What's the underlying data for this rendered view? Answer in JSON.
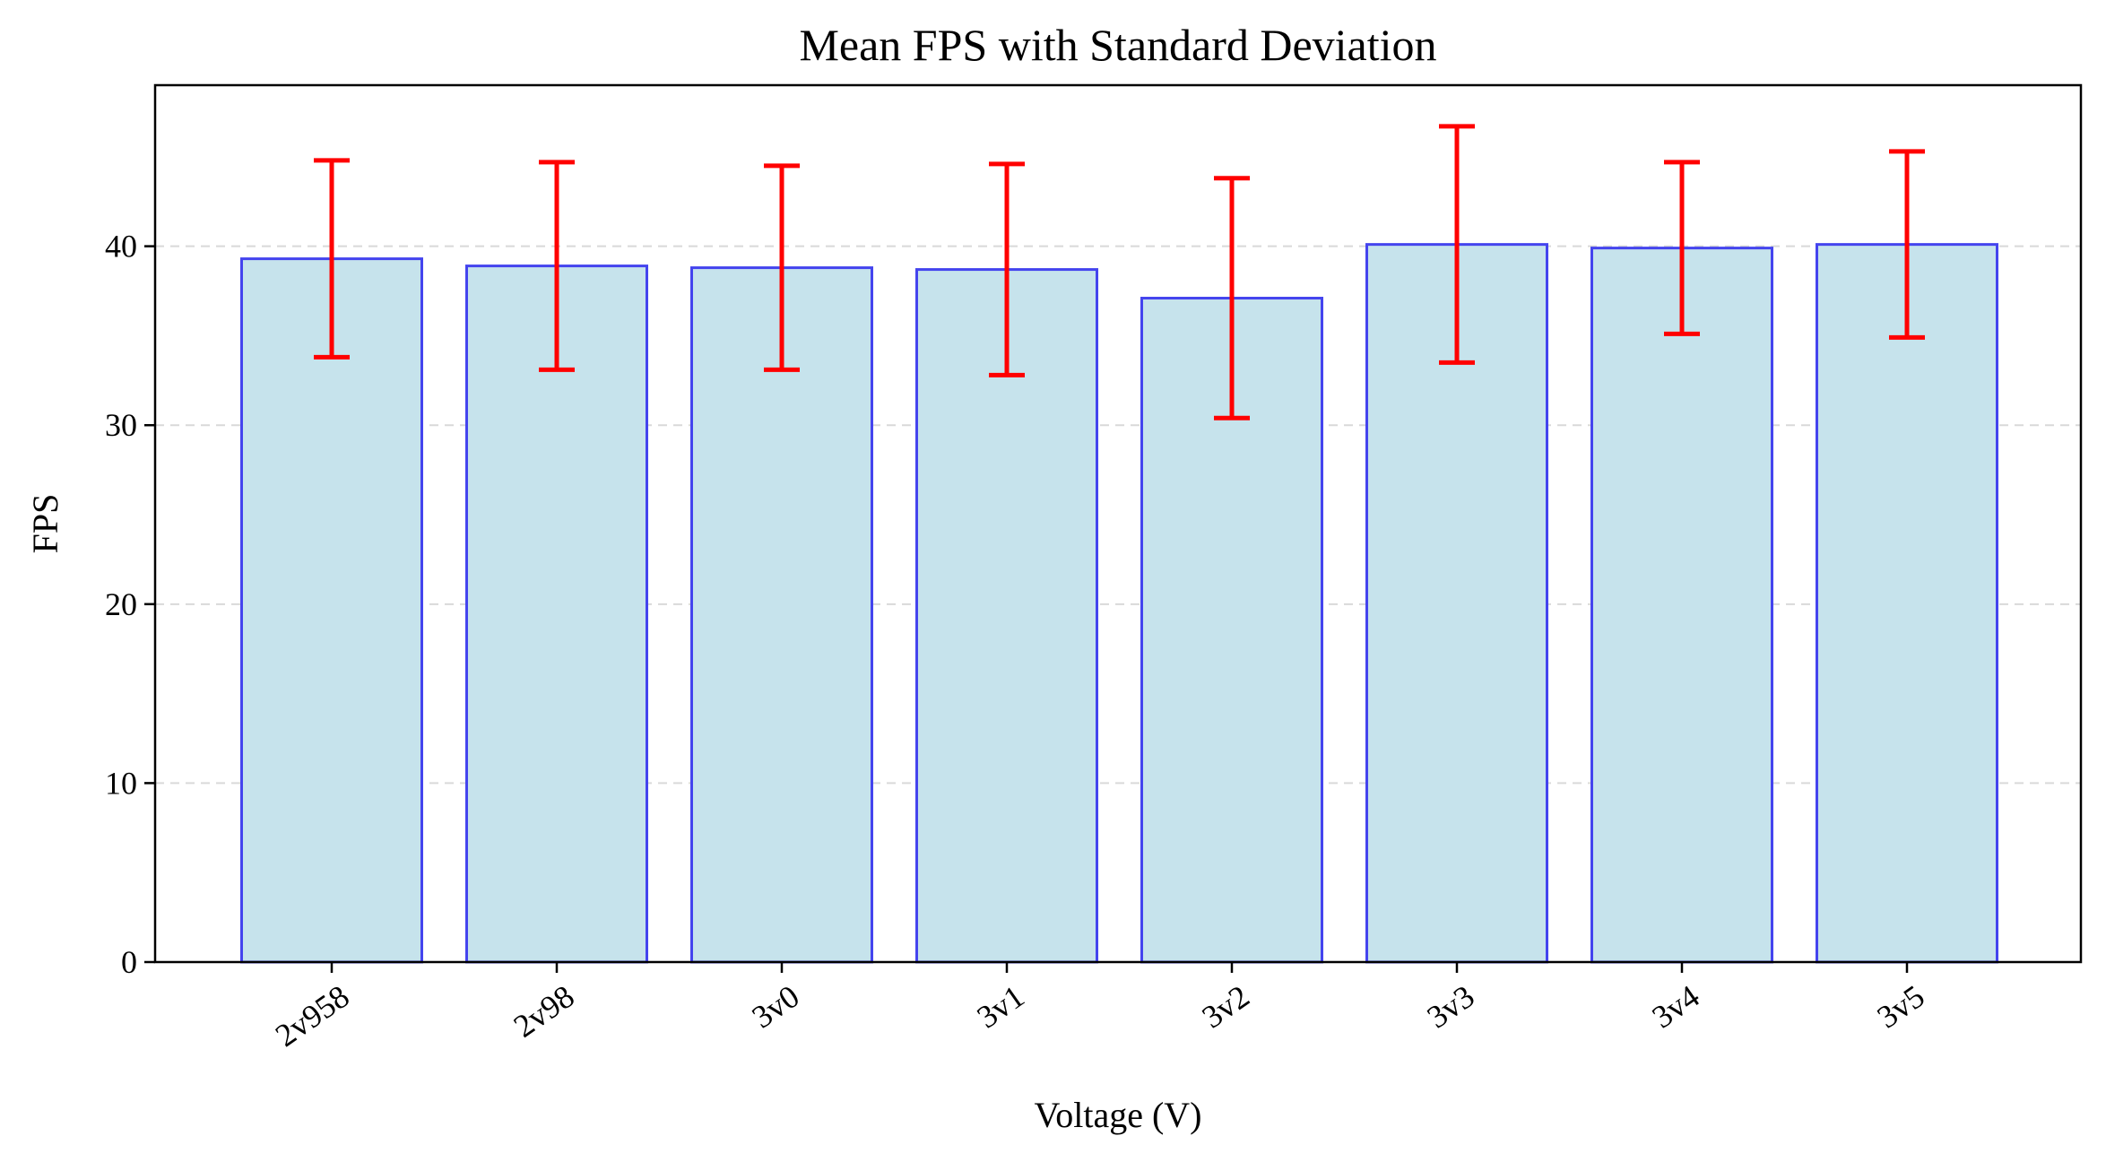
{
  "chart_data": {
    "type": "bar",
    "title": "Mean FPS with Standard Deviation",
    "xlabel": "Voltage (V)",
    "ylabel": "FPS",
    "categories": [
      "2v958",
      "2v98",
      "3v0",
      "3v1",
      "3v2",
      "3v3",
      "3v4",
      "3v5"
    ],
    "values": [
      39.3,
      38.9,
      38.8,
      38.7,
      37.1,
      40.1,
      39.9,
      40.1
    ],
    "error": [
      5.5,
      5.8,
      5.7,
      5.9,
      6.7,
      6.6,
      4.8,
      5.2
    ],
    "ylim": [
      0,
      49
    ],
    "yticks": [
      0,
      10,
      20,
      30,
      40
    ],
    "grid": "y-dashed",
    "legend": "none",
    "colors": {
      "bar_fill": "#c6e3ec",
      "bar_edge": "#4444ee",
      "error_bar": "#ff0000",
      "grid": "#d9d9d9"
    }
  }
}
